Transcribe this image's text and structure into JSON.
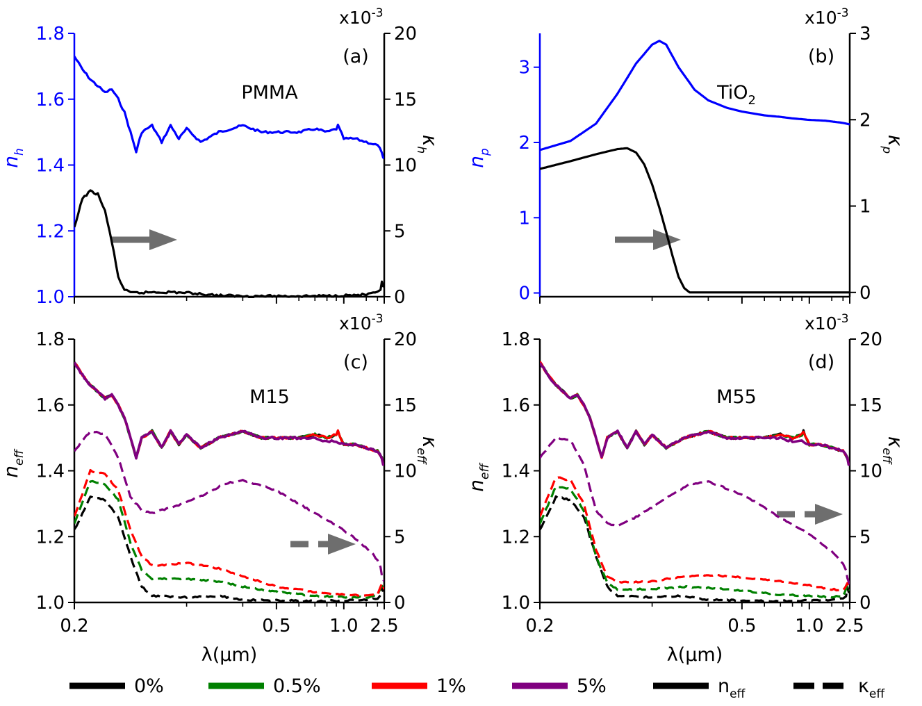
{
  "chart_data": [
    {
      "panel": "a",
      "type": "line",
      "tag": "(a)",
      "material": "PMMA",
      "xlabel": "",
      "ylabel_left": "n",
      "ylabel_left_sub": "h",
      "ylabel_right": "κ",
      "ylabel_right_sub": "h",
      "right_exponent": "x10",
      "right_exponent_power": "-3",
      "xlim": [
        0.2,
        2.5
      ],
      "xscale": "reciprocal",
      "ylim_left": [
        1.0,
        1.8
      ],
      "ylim_right": [
        0,
        20
      ],
      "yticks_left": [
        "1.0",
        "1.2",
        "1.4",
        "1.6",
        "1.8"
      ],
      "yticks_right": [
        "0",
        "5",
        "10",
        "15",
        "20"
      ],
      "left_color": "#0000ff",
      "series": [
        {
          "role": "n_h",
          "axis": "left",
          "color": "#0000ff",
          "style": "solid",
          "x": [
            0.2,
            0.205,
            0.21,
            0.215,
            0.22,
            0.225,
            0.23,
            0.235,
            0.24,
            0.245,
            0.25,
            0.26,
            0.27,
            0.28,
            0.29,
            0.3,
            0.32,
            0.35,
            0.4,
            0.45,
            0.5,
            0.6,
            0.7,
            0.8,
            0.9,
            0.92,
            1.0,
            1.2,
            1.5,
            2.0,
            2.3,
            2.4,
            2.5
          ],
          "y": [
            1.73,
            1.69,
            1.66,
            1.64,
            1.62,
            1.63,
            1.6,
            1.56,
            1.5,
            1.44,
            1.5,
            1.52,
            1.47,
            1.52,
            1.48,
            1.51,
            1.47,
            1.5,
            1.52,
            1.5,
            1.5,
            1.5,
            1.51,
            1.5,
            1.51,
            1.52,
            1.48,
            1.48,
            1.47,
            1.46,
            1.44,
            1.42,
            1.42
          ]
        },
        {
          "role": "kappa_h",
          "axis": "right",
          "color": "#000000",
          "style": "solid",
          "x": [
            0.2,
            0.205,
            0.21,
            0.215,
            0.22,
            0.225,
            0.23,
            0.235,
            0.24,
            0.25,
            0.26,
            0.28,
            0.3,
            0.35,
            0.4,
            0.5,
            0.7,
            1.0,
            1.5,
            2.0,
            2.2,
            2.3,
            2.4,
            2.5
          ],
          "y": [
            5.2,
            7.5,
            8.0,
            7.8,
            6.5,
            4.2,
            1.5,
            0.5,
            0.3,
            0.3,
            0.35,
            0.35,
            0.3,
            0.1,
            0.05,
            0.05,
            0.05,
            0.1,
            0.15,
            0.3,
            0.5,
            1.2,
            0.8,
            0.8
          ]
        }
      ]
    },
    {
      "panel": "b",
      "type": "line",
      "tag": "(b)",
      "material": "TiO",
      "material_sub": "2",
      "xlabel": "",
      "ylabel_left": "n",
      "ylabel_left_sub": "p",
      "ylabel_right": "κ",
      "ylabel_right_sub": "p",
      "right_exponent": "x10",
      "right_exponent_power": "-3",
      "xlim": [
        0.2,
        2.5
      ],
      "xscale": "reciprocal",
      "ylim_left": [
        -0.05,
        3.45
      ],
      "ylim_right": [
        -0.05,
        3.0
      ],
      "yticks_left": [
        "0",
        "1",
        "2",
        "3"
      ],
      "yticks_right": [
        "0",
        "1",
        "2",
        "3"
      ],
      "left_color": "#0000ff",
      "series": [
        {
          "role": "n_p",
          "axis": "left",
          "color": "#0000ff",
          "style": "solid",
          "x": [
            0.2,
            0.22,
            0.24,
            0.26,
            0.28,
            0.3,
            0.31,
            0.32,
            0.34,
            0.37,
            0.4,
            0.45,
            0.5,
            0.6,
            0.7,
            0.8,
            1.0,
            1.3,
            1.7,
            2.0,
            2.5
          ],
          "y": [
            1.9,
            2.02,
            2.25,
            2.65,
            3.05,
            3.3,
            3.35,
            3.3,
            3.0,
            2.7,
            2.56,
            2.46,
            2.41,
            2.36,
            2.34,
            2.32,
            2.3,
            2.29,
            2.27,
            2.26,
            2.24
          ]
        },
        {
          "role": "kappa_p",
          "axis": "right",
          "color": "#000000",
          "style": "solid",
          "x": [
            0.2,
            0.22,
            0.24,
            0.26,
            0.27,
            0.28,
            0.29,
            0.3,
            0.31,
            0.32,
            0.33,
            0.34,
            0.35,
            0.36,
            0.38,
            0.4,
            0.5,
            0.7,
            1.0,
            1.5,
            2.0,
            2.5
          ],
          "y": [
            1.43,
            1.52,
            1.6,
            1.66,
            1.67,
            1.62,
            1.48,
            1.25,
            0.98,
            0.7,
            0.42,
            0.18,
            0.05,
            0.0,
            0.0,
            0.0,
            0.0,
            0.0,
            0.0,
            0.0,
            0.0,
            0.0
          ]
        }
      ]
    },
    {
      "panel": "c",
      "type": "line",
      "tag": "(c)",
      "material": "M15",
      "xlabel": "λ(μm)",
      "ylabel_left": "n",
      "ylabel_left_sub": "eff",
      "ylabel_right": "κ",
      "ylabel_right_sub": "eff",
      "right_exponent": "x10",
      "right_exponent_power": "-3",
      "xlim": [
        0.2,
        2.5
      ],
      "xscale": "reciprocal",
      "xticks": [
        "0.2",
        "0.5",
        "1.0",
        "2.5"
      ],
      "ylim_left": [
        1.0,
        1.8
      ],
      "ylim_right": [
        0,
        20
      ],
      "yticks_left": [
        "1.0",
        "1.2",
        "1.4",
        "1.6",
        "1.8"
      ],
      "yticks_right": [
        "0",
        "5",
        "10",
        "15",
        "20"
      ],
      "series": [
        {
          "name": "0%",
          "role": "n_eff",
          "axis": "left",
          "color": "#000000",
          "style": "solid",
          "shape": "n_full"
        },
        {
          "name": "0.5%",
          "role": "n_eff",
          "axis": "left",
          "color": "#008000",
          "style": "solid",
          "shape": "n_full"
        },
        {
          "name": "1%",
          "role": "n_eff",
          "axis": "left",
          "color": "#ff0000",
          "style": "solid",
          "shape": "n_full"
        },
        {
          "name": "5%",
          "role": "n_eff",
          "axis": "left",
          "color": "#800080",
          "style": "solid",
          "shape": "n_purple"
        },
        {
          "name": "0%",
          "role": "kappa_eff",
          "axis": "right",
          "color": "#000000",
          "style": "dashed",
          "x": [
            0.2,
            0.21,
            0.22,
            0.23,
            0.24,
            0.25,
            0.26,
            0.3,
            0.35,
            0.4,
            0.5,
            0.7,
            1.0,
            1.5,
            2.0,
            2.2,
            2.3,
            2.4,
            2.5
          ],
          "y": [
            5.5,
            8.0,
            7.8,
            6.5,
            3.5,
            1.2,
            0.5,
            0.4,
            0.5,
            0.2,
            0.15,
            0.1,
            0.15,
            0.2,
            0.3,
            0.5,
            1.2,
            0.8,
            0.8
          ]
        },
        {
          "name": "0.5%",
          "role": "kappa_eff",
          "axis": "right",
          "color": "#008000",
          "style": "dashed",
          "x": [
            0.2,
            0.21,
            0.22,
            0.23,
            0.24,
            0.25,
            0.26,
            0.3,
            0.35,
            0.4,
            0.5,
            0.7,
            1.0,
            1.5,
            2.0,
            2.3,
            2.5
          ],
          "y": [
            6.0,
            9.2,
            9.0,
            7.8,
            4.5,
            2.5,
            1.8,
            1.8,
            1.6,
            1.2,
            0.8,
            0.5,
            0.4,
            0.4,
            0.5,
            1.3,
            0.9
          ]
        },
        {
          "name": "1%",
          "role": "kappa_eff",
          "axis": "right",
          "color": "#ff0000",
          "style": "dashed",
          "x": [
            0.2,
            0.21,
            0.22,
            0.23,
            0.24,
            0.25,
            0.26,
            0.3,
            0.35,
            0.4,
            0.5,
            0.7,
            1.0,
            1.5,
            2.0,
            2.3,
            2.5
          ],
          "y": [
            6.5,
            10.0,
            9.8,
            8.5,
            5.5,
            3.5,
            2.8,
            3.0,
            2.6,
            2.0,
            1.2,
            0.8,
            0.6,
            0.5,
            0.6,
            1.4,
            1.0
          ]
        },
        {
          "name": "5%",
          "role": "kappa_eff",
          "axis": "right",
          "color": "#800080",
          "style": "dashed",
          "x": [
            0.2,
            0.21,
            0.22,
            0.23,
            0.24,
            0.25,
            0.26,
            0.28,
            0.3,
            0.33,
            0.36,
            0.4,
            0.5,
            0.6,
            0.7,
            1.0,
            1.3,
            1.7,
            2.0,
            2.2,
            2.3,
            2.4,
            2.5
          ],
          "y": [
            11.5,
            13.0,
            12.8,
            11.0,
            8.0,
            7.0,
            6.8,
            7.2,
            7.6,
            8.3,
            9.0,
            9.3,
            8.5,
            7.5,
            6.8,
            5.5,
            4.6,
            3.8,
            3.2,
            2.7,
            2.0,
            1.8,
            1.6
          ]
        }
      ]
    },
    {
      "panel": "d",
      "type": "line",
      "tag": "(d)",
      "material": "M55",
      "xlabel": "λ(μm)",
      "ylabel_left": "n",
      "ylabel_left_sub": "eff",
      "ylabel_right": "κ",
      "ylabel_right_sub": "eff",
      "right_exponent": "x10",
      "right_exponent_power": "-3",
      "xlim": [
        0.2,
        2.5
      ],
      "xscale": "reciprocal",
      "xticks": [
        "0.2",
        "0.5",
        "1.0",
        "2.5"
      ],
      "ylim_left": [
        1.0,
        1.8
      ],
      "ylim_right": [
        0,
        20
      ],
      "yticks_left": [
        "1.0",
        "1.2",
        "1.4",
        "1.6",
        "1.8"
      ],
      "yticks_right": [
        "0",
        "5",
        "10",
        "15",
        "20"
      ],
      "series": [
        {
          "name": "0%",
          "role": "n_eff",
          "axis": "left",
          "color": "#000000",
          "style": "solid",
          "shape": "n_full"
        },
        {
          "name": "0.5%",
          "role": "n_eff",
          "axis": "left",
          "color": "#008000",
          "style": "solid",
          "shape": "n_full"
        },
        {
          "name": "1%",
          "role": "n_eff",
          "axis": "left",
          "color": "#ff0000",
          "style": "solid",
          "shape": "n_full"
        },
        {
          "name": "5%",
          "role": "n_eff",
          "axis": "left",
          "color": "#800080",
          "style": "solid",
          "shape": "n_purple"
        },
        {
          "name": "0%",
          "role": "kappa_eff",
          "axis": "right",
          "color": "#000000",
          "style": "dashed",
          "x": [
            0.2,
            0.21,
            0.22,
            0.23,
            0.24,
            0.25,
            0.26,
            0.3,
            0.35,
            0.4,
            0.5,
            0.7,
            1.0,
            1.5,
            2.0,
            2.2,
            2.3,
            2.4,
            2.5
          ],
          "y": [
            5.5,
            8.0,
            7.8,
            6.5,
            3.5,
            1.2,
            0.5,
            0.4,
            0.5,
            0.2,
            0.15,
            0.1,
            0.15,
            0.2,
            0.3,
            0.5,
            1.2,
            0.8,
            0.8
          ]
        },
        {
          "name": "0.5%",
          "role": "kappa_eff",
          "axis": "right",
          "color": "#008000",
          "style": "dashed",
          "x": [
            0.2,
            0.21,
            0.22,
            0.23,
            0.24,
            0.25,
            0.26,
            0.3,
            0.35,
            0.4,
            0.5,
            0.7,
            1.0,
            1.5,
            2.0,
            2.3,
            2.5
          ],
          "y": [
            6.0,
            8.8,
            8.6,
            7.0,
            3.5,
            1.5,
            1.0,
            1.0,
            1.2,
            1.1,
            0.9,
            0.6,
            0.5,
            0.4,
            0.5,
            1.3,
            0.9
          ]
        },
        {
          "name": "1%",
          "role": "kappa_eff",
          "axis": "right",
          "color": "#ff0000",
          "style": "dashed",
          "x": [
            0.2,
            0.21,
            0.22,
            0.23,
            0.24,
            0.25,
            0.26,
            0.3,
            0.35,
            0.4,
            0.5,
            0.7,
            1.0,
            1.5,
            2.0,
            2.3,
            2.5
          ],
          "y": [
            6.5,
            9.5,
            9.3,
            7.5,
            4.0,
            2.0,
            1.5,
            1.6,
            2.0,
            2.1,
            1.9,
            1.6,
            1.3,
            1.0,
            0.9,
            1.5,
            1.1
          ]
        },
        {
          "name": "5%",
          "role": "kappa_eff",
          "axis": "right",
          "color": "#800080",
          "style": "dashed",
          "x": [
            0.2,
            0.21,
            0.22,
            0.23,
            0.24,
            0.25,
            0.26,
            0.28,
            0.3,
            0.33,
            0.36,
            0.4,
            0.5,
            0.6,
            0.7,
            1.0,
            1.3,
            1.7,
            2.0,
            2.2,
            2.3,
            2.4,
            2.5
          ],
          "y": [
            11.0,
            12.5,
            12.3,
            10.5,
            7.0,
            6.0,
            5.8,
            6.5,
            7.2,
            8.2,
            9.0,
            9.2,
            8.2,
            7.2,
            6.4,
            5.2,
            4.3,
            3.5,
            2.9,
            2.4,
            1.8,
            1.6,
            1.4
          ]
        }
      ]
    }
  ],
  "shapes": {
    "n_full": {
      "x": [
        0.2,
        0.205,
        0.21,
        0.215,
        0.22,
        0.225,
        0.23,
        0.235,
        0.24,
        0.245,
        0.25,
        0.26,
        0.27,
        0.28,
        0.29,
        0.3,
        0.32,
        0.35,
        0.4,
        0.45,
        0.5,
        0.6,
        0.7,
        0.8,
        0.9,
        0.92,
        1.0,
        1.2,
        1.5,
        2.0,
        2.3,
        2.4,
        2.5
      ],
      "y": [
        1.73,
        1.69,
        1.66,
        1.64,
        1.62,
        1.63,
        1.6,
        1.56,
        1.5,
        1.44,
        1.5,
        1.52,
        1.47,
        1.52,
        1.48,
        1.51,
        1.47,
        1.5,
        1.52,
        1.5,
        1.5,
        1.5,
        1.51,
        1.5,
        1.51,
        1.52,
        1.48,
        1.48,
        1.47,
        1.46,
        1.44,
        1.42,
        1.42
      ]
    },
    "n_purple": {
      "x": [
        0.2,
        0.205,
        0.21,
        0.215,
        0.22,
        0.225,
        0.23,
        0.235,
        0.24,
        0.245,
        0.25,
        0.26,
        0.27,
        0.28,
        0.29,
        0.3,
        0.32,
        0.35,
        0.4,
        0.45,
        0.5,
        0.6,
        0.7,
        0.8,
        0.9,
        1.0,
        1.2,
        1.5,
        2.0,
        2.3,
        2.4,
        2.5
      ],
      "y": [
        1.73,
        1.69,
        1.66,
        1.64,
        1.62,
        1.63,
        1.6,
        1.56,
        1.5,
        1.44,
        1.5,
        1.52,
        1.47,
        1.52,
        1.48,
        1.51,
        1.47,
        1.5,
        1.52,
        1.5,
        1.5,
        1.5,
        1.5,
        1.49,
        1.49,
        1.48,
        1.48,
        1.47,
        1.46,
        1.44,
        1.42,
        1.42
      ]
    }
  },
  "legend": {
    "placement": "bottom",
    "items": [
      {
        "label": "0%",
        "color": "#000000",
        "style": "solid"
      },
      {
        "label": "0.5%",
        "color": "#008000",
        "style": "solid"
      },
      {
        "label": "1%",
        "color": "#ff0000",
        "style": "solid"
      },
      {
        "label": "5%",
        "color": "#800080",
        "style": "solid"
      },
      {
        "label": "n",
        "sub": "eff",
        "color": "#000000",
        "style": "solid"
      },
      {
        "label": "κ",
        "sub": "eff",
        "color": "#000000",
        "style": "dashed"
      }
    ]
  },
  "arrow_color": "#6e6e6e"
}
